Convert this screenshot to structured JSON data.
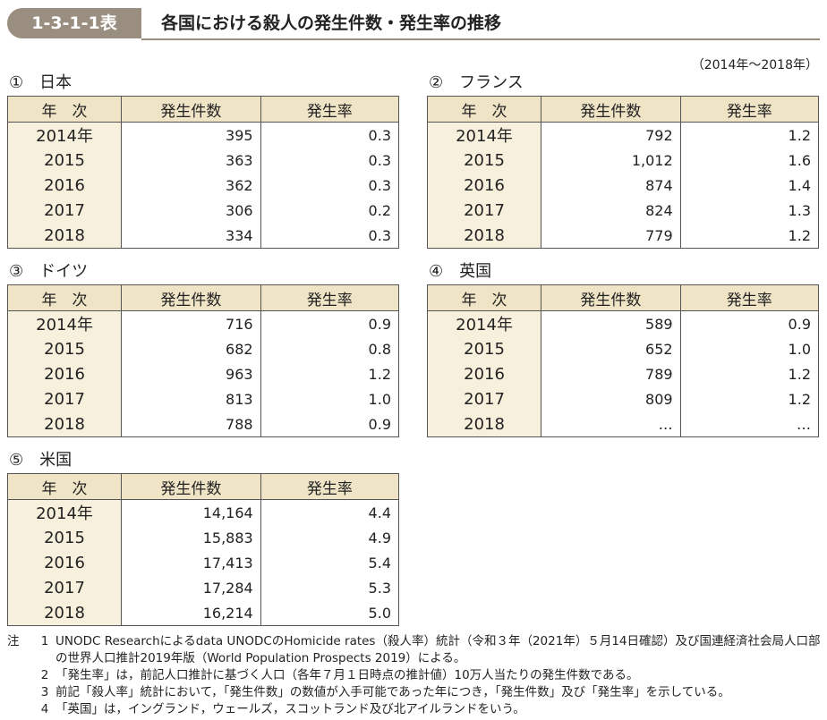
{
  "header": {
    "label": "1-3-1-1表",
    "title": "各国における殺人の発生件数・発生率の推移"
  },
  "period": "（2014年～2018年）",
  "columns": [
    "年　次",
    "発生件数",
    "発生率"
  ],
  "tables": [
    {
      "number": "①",
      "name": "日本",
      "rows": [
        [
          "2014年",
          "395",
          "0.3"
        ],
        [
          "2015",
          "363",
          "0.3"
        ],
        [
          "2016",
          "362",
          "0.3"
        ],
        [
          "2017",
          "306",
          "0.2"
        ],
        [
          "2018",
          "334",
          "0.3"
        ]
      ]
    },
    {
      "number": "②",
      "name": "フランス",
      "rows": [
        [
          "2014年",
          "792",
          "1.2"
        ],
        [
          "2015",
          "1,012",
          "1.6"
        ],
        [
          "2016",
          "874",
          "1.4"
        ],
        [
          "2017",
          "824",
          "1.3"
        ],
        [
          "2018",
          "779",
          "1.2"
        ]
      ]
    },
    {
      "number": "③",
      "name": "ドイツ",
      "rows": [
        [
          "2014年",
          "716",
          "0.9"
        ],
        [
          "2015",
          "682",
          "0.8"
        ],
        [
          "2016",
          "963",
          "1.2"
        ],
        [
          "2017",
          "813",
          "1.0"
        ],
        [
          "2018",
          "788",
          "0.9"
        ]
      ]
    },
    {
      "number": "④",
      "name": "英国",
      "rows": [
        [
          "2014年",
          "589",
          "0.9"
        ],
        [
          "2015",
          "652",
          "1.0"
        ],
        [
          "2016",
          "789",
          "1.2"
        ],
        [
          "2017",
          "809",
          "1.2"
        ],
        [
          "2018",
          "…",
          "…"
        ]
      ]
    },
    {
      "number": "⑤",
      "name": "米国",
      "rows": [
        [
          "2014年",
          "14,164",
          "4.4"
        ],
        [
          "2015",
          "15,883",
          "4.9"
        ],
        [
          "2016",
          "17,413",
          "5.4"
        ],
        [
          "2017",
          "17,284",
          "5.3"
        ],
        [
          "2018",
          "16,214",
          "5.0"
        ]
      ]
    }
  ],
  "notes": {
    "label": "注",
    "items": [
      {
        "number": "1",
        "text": "UNODC Researchによるdata UNODCのHomicide rates（殺人率）統計（令和３年（2021年）５月14日確認）及び国連経済社会局人口部の世界人口推計2019年版（World Population Prospects 2019）による。"
      },
      {
        "number": "2",
        "text": "「発生率」は，前記人口推計に基づく人口（各年７月１日時点の推計値）10万人当たりの発生件数である。"
      },
      {
        "number": "3",
        "text": "前記「殺人率」統計において，「発生件数」の数値が入手可能であった年につき，「発生件数」及び「発生率」を示している。"
      },
      {
        "number": "4",
        "text": "「英国」は，イングランド，ウェールズ，スコットランド及び北アイルランドをいう。"
      }
    ]
  }
}
